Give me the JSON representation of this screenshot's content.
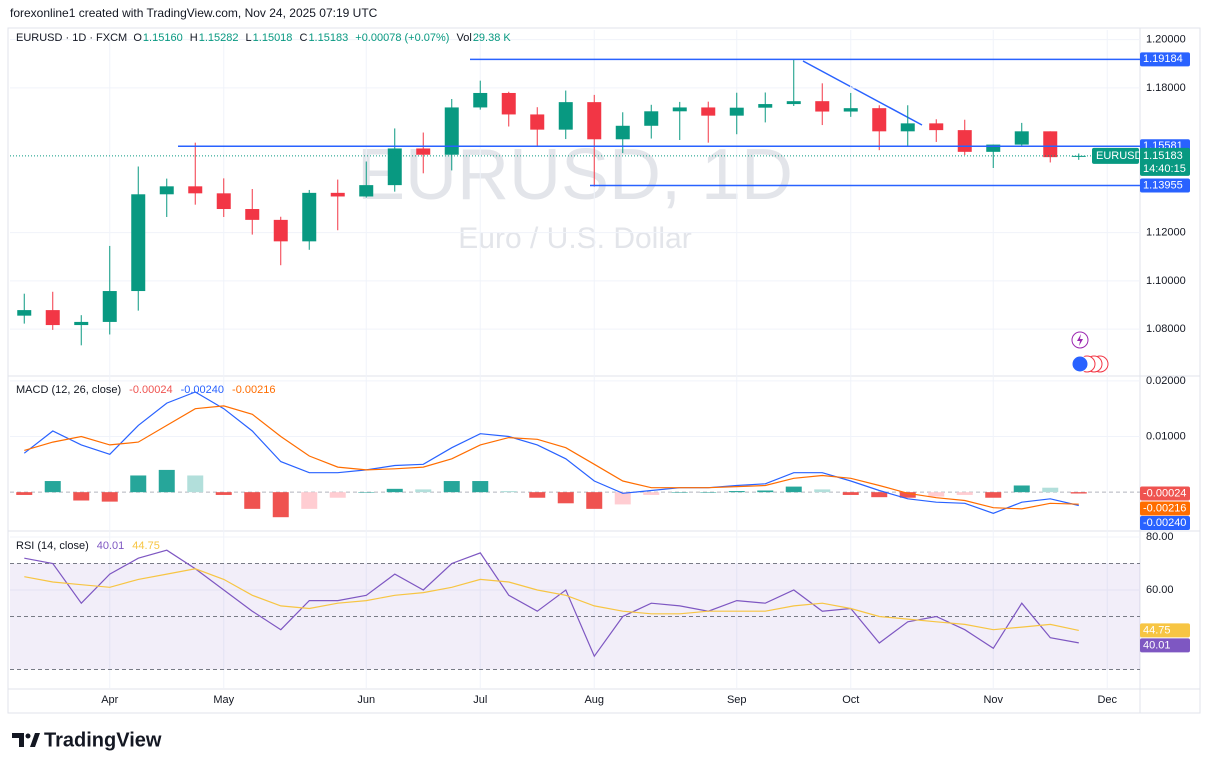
{
  "header": {
    "attribution": "forexonline1 created with TradingView.com, Nov 24, 2025 07:19 UTC"
  },
  "legend": {
    "symbol": "EURUSD · 1D · FXCM",
    "items": [
      {
        "label": "O",
        "value": "1.15160"
      },
      {
        "label": "H",
        "value": "1.15282"
      },
      {
        "label": "L",
        "value": "1.15018"
      },
      {
        "label": "C",
        "value": "1.15183"
      }
    ],
    "change": "+0.00078 (+0.07%)",
    "volume_label": "Vol",
    "volume": "29.38 K"
  },
  "watermark": {
    "symbol": "EURUSD, 1D",
    "name": "Euro / U.S. Dollar"
  },
  "footer": {
    "logo": "TradingView"
  },
  "chart_data": [
    {
      "type": "candlestick",
      "categories": [
        null,
        null,
        null,
        "Apr",
        null,
        null,
        null,
        "May",
        null,
        null,
        null,
        null,
        "Jun",
        null,
        null,
        null,
        "Jul",
        null,
        null,
        null,
        "Aug",
        null,
        null,
        null,
        null,
        "Sep",
        null,
        null,
        null,
        "Oct",
        null,
        null,
        null,
        null,
        "Nov",
        null,
        null,
        null,
        "Dec"
      ],
      "open": [
        1.0856,
        1.0879,
        1.0817,
        1.083,
        1.0958,
        1.1359,
        1.1392,
        1.1363,
        1.1298,
        1.1253,
        1.1164,
        1.1365,
        1.135,
        1.1397,
        1.1549,
        1.1523,
        1.1719,
        1.1779,
        1.169,
        1.1627,
        1.1741,
        1.1587,
        1.1643,
        1.1703,
        1.1719,
        1.1685,
        1.1718,
        1.1733,
        1.1745,
        1.1702,
        1.1716,
        1.162,
        1.1653,
        1.1625,
        1.1535,
        1.1565,
        1.162,
        1.1516,
        null
      ],
      "high": [
        1.0947,
        1.0955,
        1.0858,
        1.1145,
        1.1474,
        1.1424,
        1.1573,
        1.1425,
        1.1381,
        1.1266,
        1.1377,
        1.142,
        1.1495,
        1.1632,
        1.1615,
        1.1754,
        1.183,
        1.1784,
        1.172,
        1.1789,
        1.1771,
        1.1699,
        1.173,
        1.1742,
        1.1743,
        1.178,
        1.1781,
        1.1918,
        1.1819,
        1.1779,
        1.1728,
        1.1728,
        1.167,
        1.1668,
        1.1565,
        1.1655,
        1.162,
        1.15282,
        null
      ],
      "low": [
        1.0823,
        1.0797,
        1.0733,
        1.0778,
        1.0877,
        1.1265,
        1.1316,
        1.1265,
        1.1192,
        1.1065,
        1.1129,
        1.121,
        1.1345,
        1.137,
        1.1446,
        1.1458,
        1.171,
        1.164,
        1.1556,
        1.1588,
        1.1391,
        1.153,
        1.159,
        1.1584,
        1.1573,
        1.1608,
        1.1657,
        1.1725,
        1.1646,
        1.168,
        1.1542,
        1.1558,
        1.1576,
        1.1522,
        1.1468,
        1.1555,
        1.1491,
        1.15018,
        null
      ],
      "close": [
        1.0879,
        1.0817,
        1.083,
        1.0958,
        1.1359,
        1.1392,
        1.1363,
        1.1298,
        1.1253,
        1.1164,
        1.1365,
        1.135,
        1.1397,
        1.1549,
        1.1523,
        1.1719,
        1.1779,
        1.169,
        1.1627,
        1.1741,
        1.1587,
        1.1643,
        1.1703,
        1.1719,
        1.1685,
        1.1718,
        1.1733,
        1.1745,
        1.1702,
        1.1716,
        1.162,
        1.1653,
        1.1625,
        1.1535,
        1.1565,
        1.162,
        1.1513,
        1.15183,
        null
      ],
      "up_color": "#089981",
      "down_color": "#f23645",
      "ylim": [
        1.061,
        1.204
      ],
      "yticks": [
        {
          "value": 1.2,
          "label": "1.20000"
        },
        {
          "value": 1.18,
          "label": "1.18000"
        },
        {
          "value": 1.12,
          "label": "1.12000"
        },
        {
          "value": 1.1,
          "label": "1.10000"
        },
        {
          "value": 1.08,
          "label": "1.08000"
        }
      ],
      "hlines": [
        {
          "value": 1.19184,
          "label": "1.19184"
        },
        {
          "value": 1.15581,
          "label": "1.15581"
        },
        {
          "value": 1.13955,
          "label": "1.13955"
        }
      ],
      "hline_color": "#2962ff",
      "last_price": {
        "name": "EURUSD",
        "value": 1.15183,
        "label": "1.15183",
        "countdown": "14:40:15",
        "color": "#089981"
      },
      "grid": true
    },
    {
      "type": "macd",
      "title": "MACD (12, 26, close)",
      "ylim": [
        -0.0068,
        0.0207
      ],
      "yticks": [
        {
          "value": 0.02,
          "label": "0.02000"
        },
        {
          "value": 0.01,
          "label": "0.01000"
        }
      ],
      "zero_line": 0,
      "series": [
        {
          "style": "histogram",
          "color": "#ef5350",
          "up_color": "#26a69a",
          "up_faded": "#b2dfdb",
          "down_color": "#ef5350",
          "down_faded": "#ffcdd2",
          "last_label": "-0.00024",
          "values": [
            -0.0005,
            0.002,
            -0.0015,
            -0.0017,
            0.003,
            0.004,
            0.003,
            -0.0005,
            -0.003,
            -0.0045,
            -0.003,
            -0.001,
            0.0,
            0.0006,
            0.0005,
            0.002,
            0.002,
            0.0002,
            -0.001,
            -0.002,
            -0.003,
            -0.0022,
            -0.0005,
            0.0,
            0.0,
            0.0002,
            0.0003,
            0.001,
            0.0005,
            -0.0005,
            -0.0009,
            -0.001,
            -0.0008,
            -0.0005,
            -0.001,
            0.0012,
            0.0008,
            -0.00024,
            null
          ]
        },
        {
          "style": "line",
          "color": "#2962ff",
          "last_label": "-0.00240",
          "values": [
            0.007,
            0.011,
            0.0085,
            0.0068,
            0.012,
            0.016,
            0.018,
            0.015,
            0.011,
            0.0055,
            0.0035,
            0.0035,
            0.004,
            0.0048,
            0.005,
            0.008,
            0.0105,
            0.01,
            0.0085,
            0.006,
            0.002,
            -0.0002,
            0.0003,
            0.0008,
            0.0008,
            0.0012,
            0.0015,
            0.0035,
            0.0035,
            0.002,
            0.0003,
            -0.0012,
            -0.0018,
            -0.002,
            -0.0038,
            -0.0018,
            -0.0012,
            -0.0024,
            null
          ]
        },
        {
          "style": "line",
          "color": "#ff6d00",
          "last_label": "-0.00216",
          "values": [
            0.0075,
            0.009,
            0.01,
            0.0085,
            0.009,
            0.012,
            0.015,
            0.0155,
            0.014,
            0.01,
            0.0065,
            0.0045,
            0.004,
            0.0042,
            0.0045,
            0.006,
            0.0085,
            0.0098,
            0.0095,
            0.008,
            0.005,
            0.002,
            0.0008,
            0.0008,
            0.0008,
            0.001,
            0.0012,
            0.0025,
            0.003,
            0.0025,
            0.0012,
            -0.0002,
            -0.001,
            -0.0015,
            -0.0028,
            -0.003,
            -0.002,
            -0.00216,
            null
          ]
        }
      ],
      "grid": true
    },
    {
      "type": "rsi",
      "title": "RSI (14, close)",
      "ylim": [
        23,
        81.5
      ],
      "yticks": [
        {
          "value": 80,
          "label": "80.00"
        },
        {
          "value": 60,
          "label": "60.00"
        }
      ],
      "band": [
        30,
        70
      ],
      "band_color": "#7e57c2",
      "levels": [
        70,
        50,
        30
      ],
      "series": [
        {
          "style": "line",
          "color": "#7e57c2",
          "last_label": "40.01",
          "values": [
            72,
            70,
            55,
            66,
            72,
            75,
            68,
            60,
            52,
            45,
            56,
            56,
            58,
            66,
            60,
            70,
            74,
            58,
            52,
            60,
            35,
            50,
            55,
            54,
            52,
            56,
            55,
            60,
            52,
            53,
            40,
            48,
            50,
            45,
            38,
            55,
            42,
            40.01,
            null
          ]
        },
        {
          "style": "line",
          "color": "#f7c543",
          "last_label": "44.75",
          "values": [
            65,
            63,
            62,
            61,
            64,
            66,
            68,
            64,
            58,
            54,
            53,
            55,
            56,
            58,
            59,
            61,
            64,
            63,
            60,
            58,
            54,
            52,
            51,
            51,
            52,
            52,
            52,
            54,
            55,
            53,
            50,
            49,
            48,
            47,
            45,
            46,
            47,
            44.75,
            null
          ]
        }
      ],
      "grid": true
    }
  ]
}
